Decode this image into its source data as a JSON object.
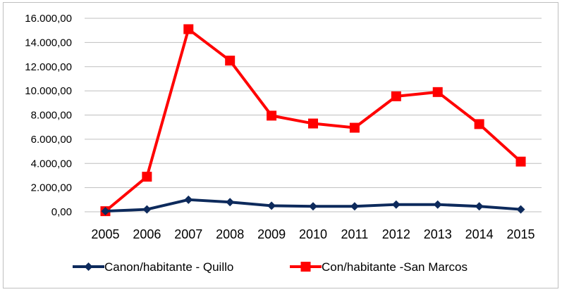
{
  "chart_data": {
    "type": "line",
    "title": "",
    "xlabel": "",
    "ylabel": "",
    "x": [
      "2005",
      "2006",
      "2007",
      "2008",
      "2009",
      "2010",
      "2011",
      "2012",
      "2013",
      "2014",
      "2015"
    ],
    "ylim": [
      0,
      16000
    ],
    "yticks": [
      0,
      2000,
      4000,
      6000,
      8000,
      10000,
      12000,
      14000,
      16000
    ],
    "ytick_labels": [
      "0,00",
      "2.000,00",
      "4.000,00",
      "6.000,00",
      "8.000,00",
      "10.000,00",
      "12.000,00",
      "14.000,00",
      "16.000,00"
    ],
    "grid": true,
    "legend_position": "bottom",
    "series": [
      {
        "name": "Canon/habitante - Quillo",
        "color": "#0d2a5c",
        "marker": "diamond",
        "values": [
          50,
          200,
          1000,
          800,
          500,
          450,
          450,
          600,
          600,
          450,
          200
        ]
      },
      {
        "name": "Con/habitante -San Marcos",
        "color": "#ff0000",
        "marker": "square",
        "values": [
          50,
          2900,
          15100,
          12500,
          7950,
          7300,
          6950,
          9550,
          9900,
          7250,
          4150
        ]
      }
    ]
  }
}
